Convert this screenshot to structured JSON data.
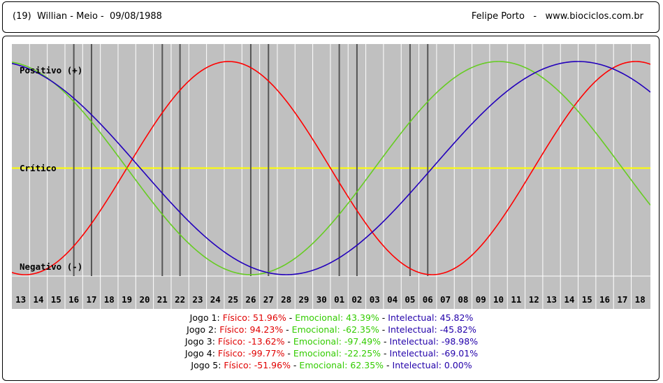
{
  "header": {
    "left": "(19)  Willian - Meio -  09/08/1988",
    "right": "Felipe Porto   -   www.biociclos.com.br"
  },
  "chart_data": {
    "type": "line",
    "labels": {
      "positive": "Positivo (+)",
      "critical": "Crítico",
      "negative": "Negativo (-)"
    },
    "days": [
      "13",
      "14",
      "15",
      "16",
      "17",
      "18",
      "19",
      "20",
      "21",
      "22",
      "23",
      "24",
      "25",
      "26",
      "27",
      "28",
      "29",
      "30",
      "01",
      "02",
      "03",
      "04",
      "05",
      "06",
      "07",
      "08",
      "09",
      "10",
      "11",
      "12",
      "13",
      "14",
      "15",
      "16",
      "17",
      "18"
    ],
    "game_days": [
      [
        "16",
        "17"
      ],
      [
        "21",
        "22"
      ],
      [
        "26",
        "27"
      ],
      [
        "01",
        "02"
      ],
      [
        "05",
        "06"
      ]
    ],
    "ylim": [
      -100,
      100
    ],
    "grid": true,
    "colors": {
      "fisico": "#ff0000",
      "emocional": "#66cc22",
      "intelectual": "#2200bb",
      "critical": "#ffff00",
      "background": "#c0c0c0",
      "gridline": "#ffffff",
      "game_line": "#555555"
    },
    "series": [
      {
        "name": "Físico",
        "cycle": 23,
        "ref_index": 17.5,
        "ref_value": 0.0,
        "ref_rising": false
      },
      {
        "name": "Emocional",
        "cycle": 28,
        "ref_index": 13.0,
        "ref_value": -100.0,
        "ref_rising": true
      },
      {
        "name": "Intelectual",
        "cycle": 33,
        "ref_index": 15.0,
        "ref_value": -100.0,
        "ref_rising": true
      }
    ]
  },
  "jogos": [
    {
      "label": "Jogo 1: ",
      "fisico": "Físico: 51.96%",
      "emocional": "Emocional: 43.39%",
      "intelectual": "Intelectual: 45.82%"
    },
    {
      "label": "Jogo 2: ",
      "fisico": "Físico: 94.23%",
      "emocional": "Emocional: -62.35%",
      "intelectual": "Intelectual: -45.82%"
    },
    {
      "label": "Jogo 3: ",
      "fisico": "Físico: -13.62%",
      "emocional": "Emocional: -97.49%",
      "intelectual": "Intelectual: -98.98%"
    },
    {
      "label": "Jogo 4: ",
      "fisico": "Físico: -99.77%",
      "emocional": "Emocional: -22.25%",
      "intelectual": "Intelectual: -69.01%"
    },
    {
      "label": "Jogo 5: ",
      "fisico": "Físico: -51.96%",
      "emocional": "Emocional: 62.35%",
      "intelectual": "Intelectual: 0.00%"
    }
  ],
  "separator": " - "
}
